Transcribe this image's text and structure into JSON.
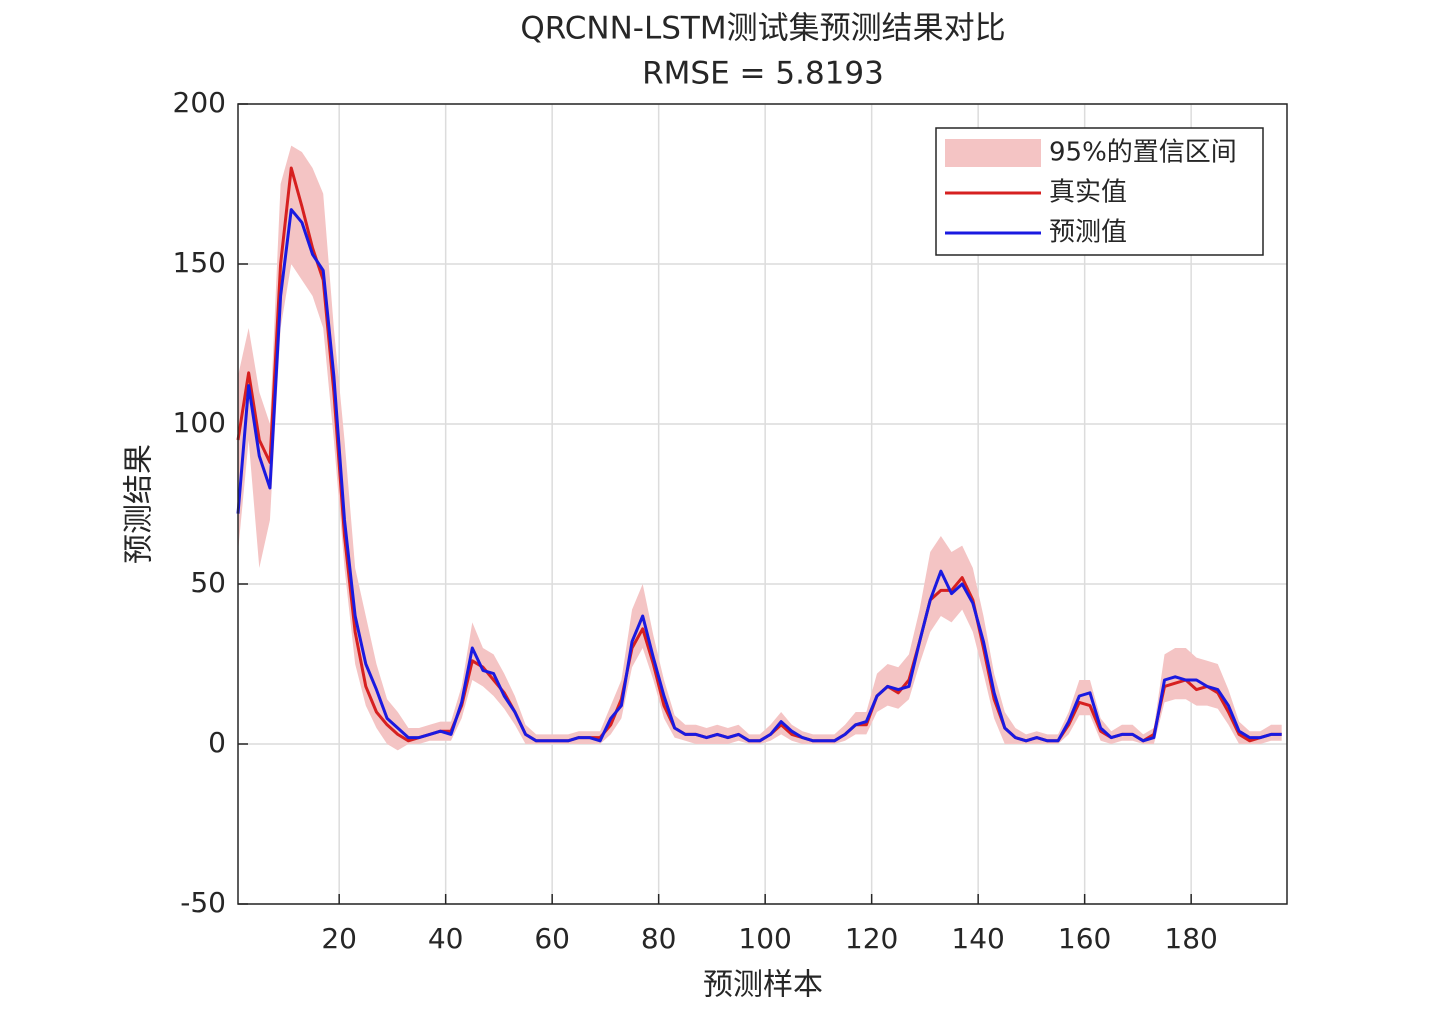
{
  "chart_data": {
    "type": "line",
    "title": "QRCNN-LSTM测试集预测结果对比",
    "subtitle": "RMSE = 5.8193",
    "x_label": "预测样本",
    "y_label": "预测结果",
    "x": [
      1,
      3,
      5,
      7,
      9,
      11,
      13,
      15,
      17,
      19,
      21,
      23,
      25,
      27,
      29,
      31,
      33,
      35,
      37,
      39,
      41,
      43,
      45,
      47,
      49,
      51,
      53,
      55,
      57,
      59,
      61,
      63,
      65,
      67,
      69,
      71,
      73,
      75,
      77,
      79,
      81,
      83,
      85,
      87,
      89,
      91,
      93,
      95,
      97,
      99,
      101,
      103,
      105,
      107,
      109,
      111,
      113,
      115,
      117,
      119,
      121,
      123,
      125,
      127,
      129,
      131,
      133,
      135,
      137,
      139,
      141,
      143,
      145,
      147,
      149,
      151,
      153,
      155,
      157,
      159,
      161,
      163,
      165,
      167,
      169,
      171,
      173,
      175,
      177,
      179,
      181,
      183,
      185,
      187,
      189,
      191,
      193,
      195,
      197
    ],
    "series": [
      {
        "name": "95%的置信区间",
        "color": "#f4c4c4",
        "lower": [
          60,
          95,
          55,
          70,
          130,
          150,
          145,
          140,
          130,
          95,
          55,
          25,
          12,
          5,
          0,
          -2,
          0,
          0,
          1,
          1,
          1,
          8,
          20,
          18,
          15,
          11,
          6,
          0,
          0,
          0,
          0,
          0,
          0,
          0,
          0,
          3,
          8,
          24,
          30,
          20,
          8,
          2,
          1,
          0,
          0,
          0,
          0,
          1,
          0,
          0,
          1,
          3,
          1,
          0,
          0,
          0,
          0,
          1,
          3,
          3,
          10,
          12,
          11,
          14,
          25,
          35,
          40,
          38,
          42,
          35,
          22,
          8,
          0,
          0,
          0,
          0,
          0,
          0,
          3,
          9,
          9,
          1,
          0,
          1,
          1,
          0,
          0,
          13,
          14,
          14,
          12,
          12,
          11,
          6,
          0,
          0,
          0,
          1,
          1
        ],
        "upper": [
          115,
          130,
          110,
          100,
          175,
          187,
          185,
          180,
          172,
          130,
          95,
          55,
          40,
          25,
          14,
          10,
          5,
          5,
          6,
          7,
          7,
          18,
          38,
          30,
          28,
          22,
          15,
          6,
          3,
          3,
          3,
          3,
          4,
          4,
          4,
          12,
          20,
          42,
          50,
          34,
          20,
          9,
          6,
          6,
          5,
          6,
          5,
          6,
          3,
          3,
          6,
          10,
          6,
          4,
          3,
          3,
          3,
          6,
          10,
          10,
          22,
          25,
          24,
          28,
          42,
          60,
          65,
          60,
          62,
          55,
          40,
          22,
          10,
          5,
          3,
          4,
          3,
          3,
          10,
          20,
          20,
          8,
          4,
          6,
          6,
          3,
          5,
          28,
          30,
          30,
          27,
          26,
          25,
          17,
          7,
          4,
          4,
          6,
          6
        ]
      },
      {
        "name": "真实值",
        "color": "#d62020",
        "values": [
          95,
          116,
          95,
          88,
          150,
          180,
          168,
          155,
          145,
          110,
          65,
          35,
          18,
          10,
          6,
          3,
          1,
          2,
          3,
          4,
          4,
          12,
          26,
          24,
          20,
          16,
          10,
          3,
          1,
          1,
          1,
          1,
          2,
          2,
          2,
          6,
          14,
          30,
          36,
          25,
          12,
          5,
          3,
          3,
          2,
          3,
          2,
          3,
          1,
          1,
          3,
          6,
          3,
          2,
          1,
          1,
          1,
          3,
          6,
          6,
          15,
          18,
          16,
          20,
          32,
          45,
          48,
          48,
          52,
          45,
          30,
          14,
          5,
          2,
          1,
          2,
          1,
          1,
          6,
          13,
          12,
          4,
          2,
          3,
          3,
          1,
          3,
          18,
          19,
          20,
          17,
          18,
          16,
          10,
          3,
          1,
          2,
          3,
          3
        ]
      },
      {
        "name": "预测值",
        "color": "#1a1ae0",
        "values": [
          72,
          112,
          90,
          80,
          140,
          167,
          163,
          153,
          148,
          115,
          70,
          40,
          25,
          17,
          8,
          5,
          2,
          2,
          3,
          4,
          3,
          13,
          30,
          23,
          22,
          15,
          10,
          3,
          1,
          1,
          1,
          1,
          2,
          2,
          1,
          8,
          12,
          32,
          40,
          27,
          15,
          5,
          3,
          3,
          2,
          3,
          2,
          3,
          1,
          1,
          3,
          7,
          4,
          2,
          1,
          1,
          1,
          3,
          6,
          7,
          15,
          18,
          17,
          18,
          32,
          45,
          54,
          47,
          50,
          44,
          32,
          16,
          5,
          2,
          1,
          2,
          1,
          1,
          7,
          15,
          16,
          5,
          2,
          3,
          3,
          1,
          2,
          20,
          21,
          20,
          20,
          18,
          17,
          12,
          4,
          2,
          2,
          3,
          3
        ]
      }
    ],
    "xlim": [
      1,
      198
    ],
    "ylim": [
      -50,
      200
    ],
    "xticks": [
      20,
      40,
      60,
      80,
      100,
      120,
      140,
      160,
      180
    ],
    "yticks": [
      -50,
      0,
      50,
      100,
      150,
      200
    ],
    "grid": true,
    "legend": "northeast"
  }
}
